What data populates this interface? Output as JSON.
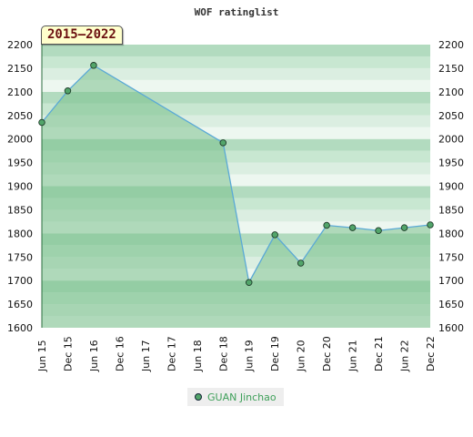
{
  "chart_data": {
    "type": "area",
    "title": "WOF ratinglist",
    "badge": "2015–2022",
    "categories": [
      "Jun 15",
      "Dec 15",
      "Jun 16",
      "Dec 16",
      "Jun 17",
      "Dec 17",
      "Jun 18",
      "Dec 18",
      "Jun 19",
      "Dec 19",
      "Jun 20",
      "Dec 20",
      "Jun 21",
      "Dec 21",
      "Jun 22",
      "Dec 22"
    ],
    "series": [
      {
        "name": "GUAN Jinchao",
        "values": [
          2035,
          2102,
          2156,
          null,
          null,
          null,
          null,
          1992,
          1696,
          1797,
          1737,
          1817,
          1812,
          1806,
          1812,
          1818
        ]
      }
    ],
    "ylim": [
      1600,
      2200
    ],
    "yticks": [
      1600,
      1650,
      1700,
      1750,
      1800,
      1850,
      1900,
      1950,
      2000,
      2050,
      2100,
      2150,
      2200
    ],
    "grid": true,
    "legend": "bottom-center",
    "colors": {
      "line": "#5aa9d6",
      "marker": "#52a56a",
      "fill": "#7cc18e"
    }
  }
}
